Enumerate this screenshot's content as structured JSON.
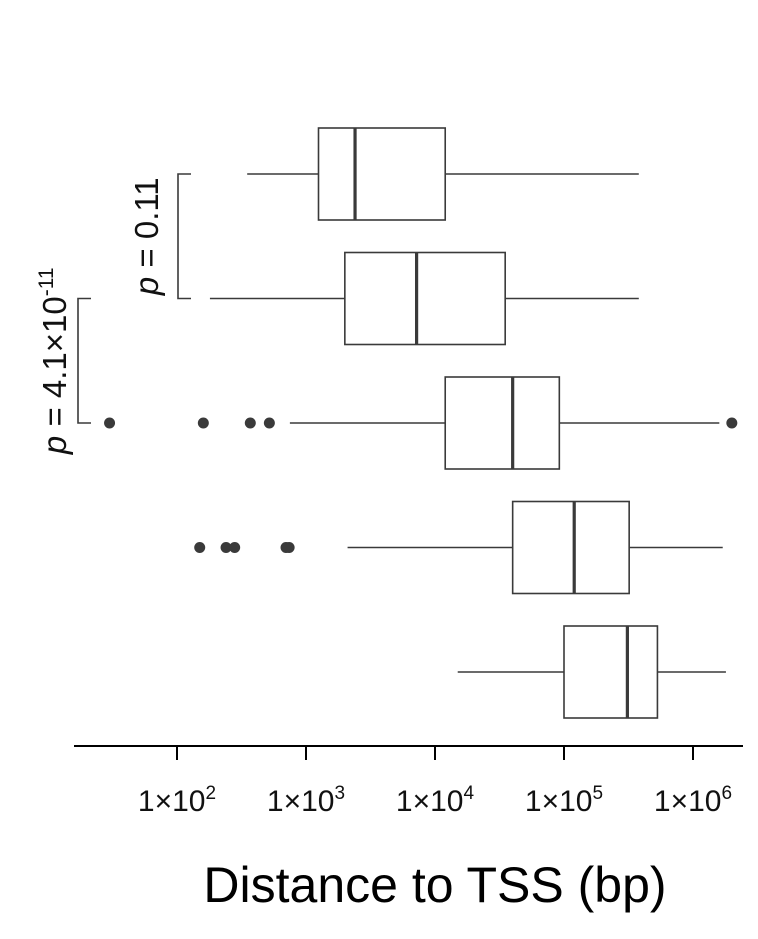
{
  "chart_data": {
    "type": "boxplot",
    "orientation": "horizontal",
    "xlabel": "Distance to TSS (bp)",
    "xscale": "log",
    "xlim": [
      2.5,
      3000000
    ],
    "xticks": [
      {
        "value": 100,
        "base": "1×10",
        "exp": "2"
      },
      {
        "value": 1000,
        "base": "1×10",
        "exp": "3"
      },
      {
        "value": 10000,
        "base": "1×10",
        "exp": "4"
      },
      {
        "value": 100000,
        "base": "1×10",
        "exp": "5"
      },
      {
        "value": 1000000,
        "base": "1×10",
        "exp": "6"
      }
    ],
    "boxes": [
      {
        "whisker_low": 350,
        "q1": 1250,
        "median": 2400,
        "q3": 12000,
        "whisker_high": 380000,
        "outliers": []
      },
      {
        "whisker_low": 180,
        "q1": 2000,
        "median": 7200,
        "q3": 35000,
        "whisker_high": 380000,
        "outliers": []
      },
      {
        "whisker_low": 750,
        "q1": 12000,
        "median": 40000,
        "q3": 92000,
        "whisker_high": 1600000,
        "outliers": [
          30,
          160,
          370,
          520,
          2000000
        ]
      },
      {
        "whisker_low": 2100,
        "q1": 40000,
        "median": 120000,
        "q3": 320000,
        "whisker_high": 1700000,
        "outliers": [
          150,
          240,
          280,
          700,
          740
        ]
      },
      {
        "whisker_low": 15000,
        "q1": 100000,
        "median": 310000,
        "q3": 530000,
        "whisker_high": 1800000,
        "outliers": []
      }
    ],
    "annotations": [
      {
        "prefix": "p",
        "text": " = 0.11",
        "between_boxes": [
          0,
          1
        ]
      },
      {
        "prefix": "p",
        "text": " = 4.1×10",
        "sup": "-11",
        "between_boxes": [
          1,
          2
        ]
      }
    ]
  }
}
